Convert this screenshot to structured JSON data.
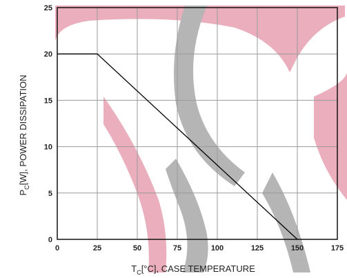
{
  "colors": {
    "background": "#ffffff",
    "grid": "#9a9a9a",
    "frame": "#111111",
    "line": "#000000",
    "watermark_red": "#e7a0b2",
    "watermark_gray": "#a9a9a9"
  },
  "chart_data": {
    "type": "line",
    "title": "",
    "xlabel": {
      "main": "T",
      "sub": "C",
      "rest": "[°C], CASE TEMPERATURE"
    },
    "ylabel": {
      "main": "P",
      "sub": "C",
      "rest": "[W], POWER DISSIPATION"
    },
    "xlim": [
      0,
      175
    ],
    "ylim": [
      0,
      25
    ],
    "xticks": [
      0,
      25,
      50,
      75,
      100,
      125,
      150,
      175
    ],
    "yticks": [
      0,
      5,
      10,
      15,
      20,
      25
    ],
    "grid": true,
    "legend": "none",
    "series": [
      {
        "x": [
          0,
          25,
          150
        ],
        "y": [
          20,
          20,
          0
        ]
      }
    ]
  }
}
